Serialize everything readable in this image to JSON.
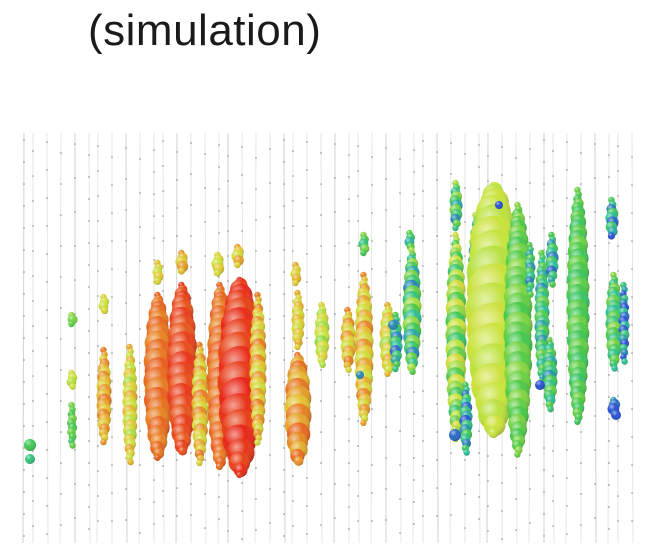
{
  "caption": "(simulation)",
  "colors": {
    "background": "#ffffff",
    "string_line": "#d6d6d6",
    "early_hits": "#ff2a1a",
    "mid_hits": "#f0e23a",
    "late_hits": "#3ec94a",
    "latest_hits": "#2b4fd6"
  },
  "icons": [
    "detector-string-lines",
    "hit-sphere"
  ]
}
